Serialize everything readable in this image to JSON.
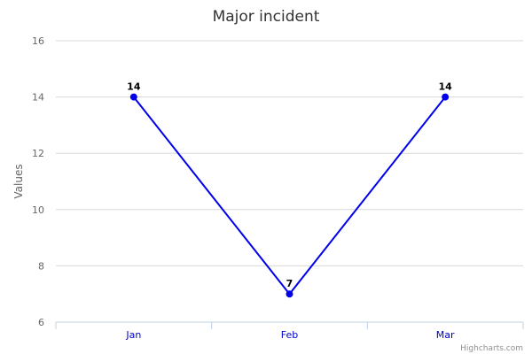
{
  "chart_data": {
    "type": "line",
    "title": "Major incident",
    "xlabel": "",
    "ylabel": "Values",
    "categories": [
      "Jan",
      "Feb",
      "Mar"
    ],
    "series": [
      {
        "values": [
          14,
          7,
          14
        ],
        "color": "#0000ee"
      }
    ],
    "ylim": [
      6,
      16
    ],
    "yticks": [
      "6",
      "8",
      "10",
      "12",
      "14",
      "16"
    ],
    "grid": true,
    "data_labels": [
      "14",
      "7",
      "14"
    ]
  },
  "credits": "Highcharts.com",
  "colors": {
    "axis_label": "#0000cc",
    "tick_label": "#666666",
    "grid": "#d8d8d8",
    "axis_line": "#c0d0e0"
  }
}
